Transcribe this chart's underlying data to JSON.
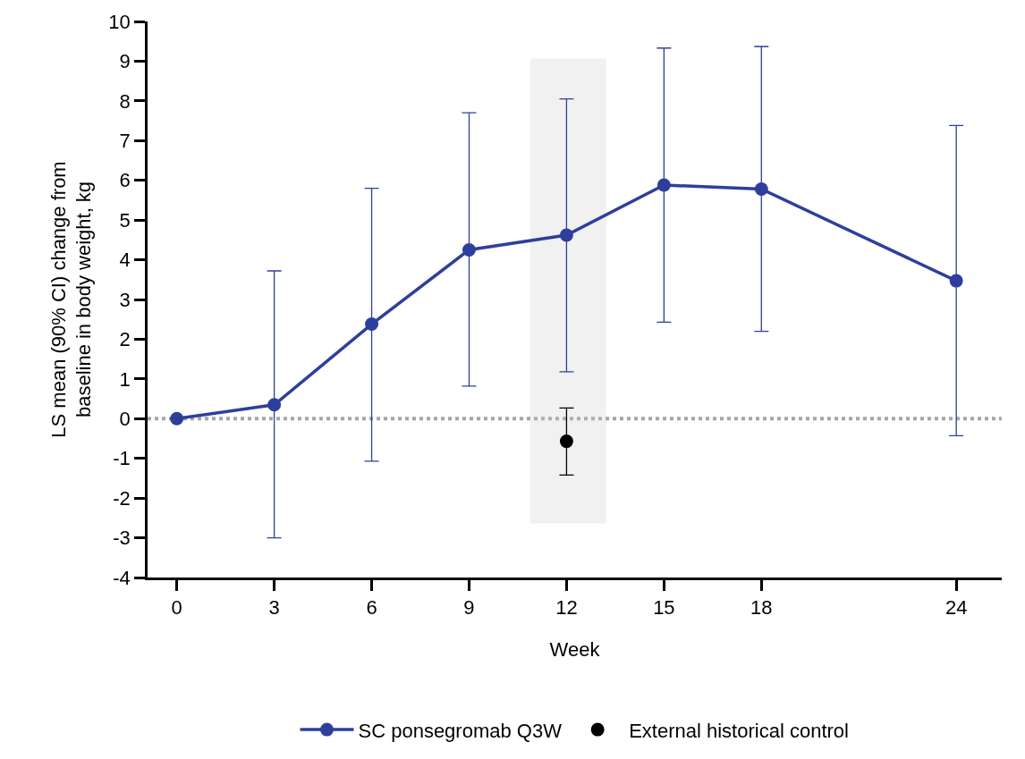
{
  "chart_data": {
    "type": "line",
    "xlabel": "Week",
    "ylabel": "LS mean (90% CI) change from\nbaseline in body weight, kg",
    "x": [
      0,
      3,
      6,
      9,
      12,
      15,
      18,
      24
    ],
    "series": [
      {
        "name": "SC ponsegromab Q3W",
        "color": "#2e3f9b",
        "values": [
          0,
          0.35,
          2.38,
          4.25,
          4.62,
          5.88,
          5.78,
          3.47
        ],
        "errors": [
          null,
          [
            -3.0,
            3.72
          ],
          [
            -1.07,
            5.8
          ],
          [
            0.82,
            7.7
          ],
          [
            1.18,
            8.05
          ],
          [
            2.43,
            9.33
          ],
          [
            2.2,
            9.37
          ],
          [
            -0.43,
            7.38
          ]
        ]
      },
      {
        "name": "External historical control",
        "type": "scatter",
        "color": "#000000",
        "x": [
          12
        ],
        "values": [
          -0.57
        ],
        "errors": [
          [
            -1.42,
            0.27
          ]
        ]
      }
    ],
    "xlim": [
      -0.9,
      25.4
    ],
    "xticks": [
      0,
      3,
      6,
      9,
      12,
      15,
      18,
      24
    ],
    "ylim": [
      -4,
      10
    ],
    "yticks": [
      -4,
      -3,
      -2,
      -1,
      0,
      1,
      2,
      3,
      4,
      5,
      6,
      7,
      8,
      9,
      10
    ],
    "ref_lines": [
      {
        "axis": "y",
        "value": 0,
        "color": "#a6a6a6",
        "line_style": "dotted"
      }
    ],
    "bands": [
      {
        "axis": "x",
        "from": 10.9,
        "to": 13.2,
        "color": "#c8c8c8"
      }
    ],
    "marker": "circle",
    "line_style": "solid",
    "grid": false,
    "legend": "bottom"
  }
}
